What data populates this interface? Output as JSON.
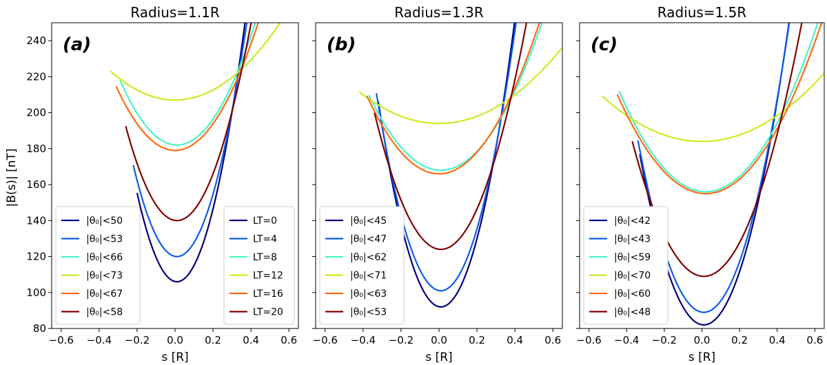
{
  "chart_data": {
    "type": "line",
    "ylabel": "|B(s)| [nT]",
    "xlabel": "s [R]",
    "xlim": [
      -0.65,
      0.65
    ],
    "ylim": [
      80,
      250
    ],
    "xticks": [
      -0.6,
      -0.4,
      -0.2,
      0.0,
      0.2,
      0.4,
      0.6
    ],
    "xtick_labels": [
      "−0.6",
      "−0.4",
      "−0.2",
      "0.0",
      "0.2",
      "0.4",
      "0.6"
    ],
    "yticks": [
      80,
      100,
      120,
      140,
      160,
      180,
      200,
      220,
      240
    ],
    "ytick_labels": [
      "80",
      "100",
      "120",
      "140",
      "160",
      "180",
      "200",
      "220",
      "240"
    ],
    "lt_colors": {
      "LT=0": "#00007f",
      "LT=4": "#0c5ce6",
      "LT=8": "#4af2c9",
      "LT=12": "#c9ec22",
      "LT=16": "#ff6a10",
      "LT=20": "#7f0000"
    },
    "lt_legend": [
      "LT=0",
      "LT=4",
      "LT=8",
      "LT=12",
      "LT=16",
      "LT=20"
    ],
    "panels": [
      {
        "title": "Radius=1.1R",
        "label": "(a)",
        "series": [
          {
            "lt": "LT=0",
            "legend": "|θ₀|<50",
            "x_start": -0.2,
            "min_s": 0.01,
            "min_b": 106,
            "k": 1120
          },
          {
            "lt": "LT=4",
            "legend": "|θ₀|<53",
            "x_start": -0.22,
            "min_s": 0.01,
            "min_b": 120,
            "k": 960
          },
          {
            "lt": "LT=8",
            "legend": "|θ₀|<66",
            "x_start": -0.29,
            "min_s": 0.01,
            "min_b": 182,
            "k": 400
          },
          {
            "lt": "LT=12",
            "legend": "|θ₀|<73",
            "x_start": -0.34,
            "min_s": 0.0,
            "min_b": 207,
            "k": 140
          },
          {
            "lt": "LT=16",
            "legend": "|θ₀|<67",
            "x_start": -0.31,
            "min_s": 0.0,
            "min_b": 179,
            "k": 370
          },
          {
            "lt": "LT=20",
            "legend": "|θ₀|<58",
            "x_start": -0.26,
            "min_s": 0.01,
            "min_b": 140,
            "k": 720
          }
        ]
      },
      {
        "title": "Radius=1.3R",
        "label": "(b)",
        "series": [
          {
            "lt": "LT=0",
            "legend": "|θ₀|<45",
            "x_start": -0.32,
            "min_s": 0.01,
            "min_b": 92,
            "k": 1050
          },
          {
            "lt": "LT=4",
            "legend": "|θ₀|<47",
            "x_start": -0.33,
            "min_s": 0.01,
            "min_b": 101,
            "k": 950
          },
          {
            "lt": "LT=8",
            "legend": "|θ₀|<62",
            "x_start": -0.37,
            "min_s": 0.01,
            "min_b": 168,
            "k": 290
          },
          {
            "lt": "LT=12",
            "legend": "|θ₀|<71",
            "x_start": -0.42,
            "min_s": 0.0,
            "min_b": 194,
            "k": 100
          },
          {
            "lt": "LT=16",
            "legend": "|θ₀|<63",
            "x_start": -0.38,
            "min_s": 0.0,
            "min_b": 166,
            "k": 300
          },
          {
            "lt": "LT=20",
            "legend": "|θ₀|<53",
            "x_start": -0.34,
            "min_s": 0.01,
            "min_b": 124,
            "k": 620
          }
        ]
      },
      {
        "title": "Radius=1.5R",
        "label": "(c)",
        "series": [
          {
            "lt": "LT=0",
            "legend": "|θ₀|<42",
            "x_start": -0.33,
            "min_s": 0.01,
            "min_b": 82,
            "k": 820
          },
          {
            "lt": "LT=4",
            "legend": "|θ₀|<43",
            "x_start": -0.34,
            "min_s": 0.01,
            "min_b": 89,
            "k": 780
          },
          {
            "lt": "LT=8",
            "legend": "|θ₀|<59",
            "x_start": -0.44,
            "min_s": 0.02,
            "min_b": 156,
            "k": 265
          },
          {
            "lt": "LT=12",
            "legend": "|θ₀|<70",
            "x_start": -0.53,
            "min_s": 0.0,
            "min_b": 184,
            "k": 90
          },
          {
            "lt": "LT=16",
            "legend": "|θ₀|<60",
            "x_start": -0.45,
            "min_s": 0.02,
            "min_b": 155,
            "k": 250
          },
          {
            "lt": "LT=20",
            "legend": "|θ₀|<48",
            "x_start": -0.37,
            "min_s": 0.01,
            "min_b": 109,
            "k": 520
          }
        ]
      }
    ]
  }
}
